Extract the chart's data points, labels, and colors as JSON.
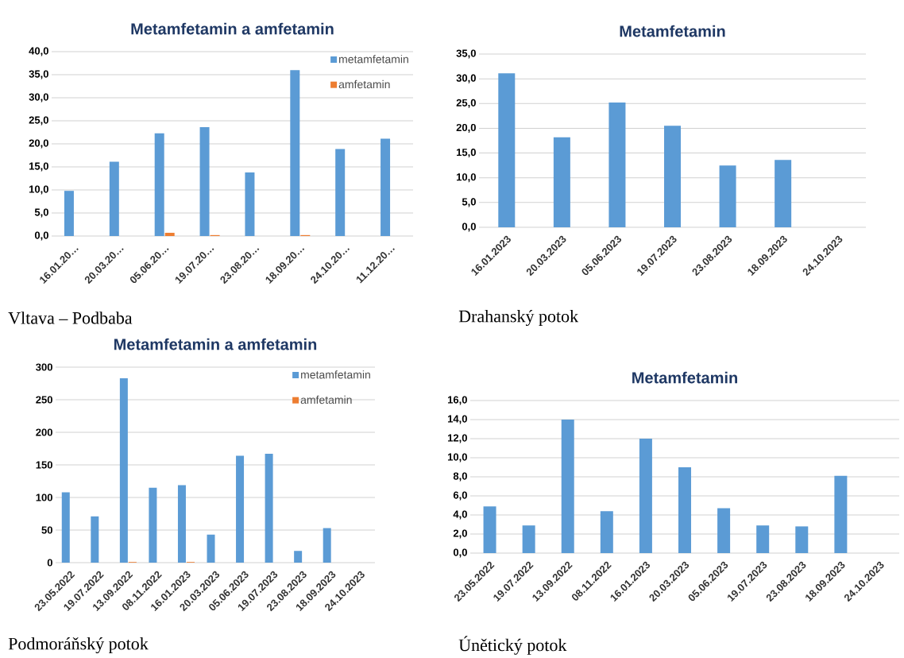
{
  "chart_data": [
    {
      "type": "bar",
      "title": "Metamfetamin a amfetamin",
      "categories": [
        "16.01.20…",
        "20.03.20…",
        "05.06.20…",
        "19.07.20…",
        "23.08.20…",
        "18.09.20…",
        "24.10.20…",
        "11.12.20…"
      ],
      "series": [
        {
          "name": "metamfetamin",
          "color": "#5b9bd5",
          "values": [
            9.8,
            16.1,
            22.3,
            23.6,
            13.8,
            36.0,
            18.9,
            21.1
          ]
        },
        {
          "name": "amfetamin",
          "color": "#ed7d31",
          "values": [
            null,
            null,
            0.7,
            0.2,
            null,
            0.2,
            null,
            null
          ]
        }
      ],
      "ylim": [
        0,
        40
      ],
      "yticks": [
        {
          "value": 0,
          "label": "0,0"
        },
        {
          "value": 5,
          "label": "5,0"
        },
        {
          "value": 10,
          "label": "10,0"
        },
        {
          "value": 15,
          "label": "15,0"
        },
        {
          "value": 20,
          "label": "20,0"
        },
        {
          "value": 25,
          "label": "25,0"
        },
        {
          "value": 30,
          "label": "30,0"
        },
        {
          "value": 35,
          "label": "35,0"
        },
        {
          "value": 40,
          "label": "40,0"
        }
      ],
      "grid": "y",
      "legend": "top right",
      "annotations": [
        "Vltava – Podbaba"
      ]
    },
    {
      "type": "bar",
      "title": "Metamfetamin",
      "categories": [
        "16.01.2023",
        "20.03.2023",
        "05.06.2023",
        "19.07.2023",
        "23.08.2023",
        "18.09.2023",
        "24.10.2023"
      ],
      "series": [
        {
          "color": "#5b9bd5",
          "values": [
            31.1,
            18.2,
            25.2,
            20.5,
            12.5,
            13.6,
            null
          ]
        }
      ],
      "ylim": [
        0,
        35
      ],
      "yticks": [
        {
          "value": 0,
          "label": "0,0"
        },
        {
          "value": 5,
          "label": "5,0"
        },
        {
          "value": 10,
          "label": "10,0"
        },
        {
          "value": 15,
          "label": "15,0"
        },
        {
          "value": 20,
          "label": "20,0"
        },
        {
          "value": 25,
          "label": "25,0"
        },
        {
          "value": 30,
          "label": "30,0"
        },
        {
          "value": 35,
          "label": "35,0"
        }
      ],
      "grid": "y",
      "annotations": [
        "Drahanský potok"
      ]
    },
    {
      "type": "bar",
      "title": "Metamfetamin a amfetamin",
      "categories": [
        "23.05.2022",
        "19.07.2022",
        "13.09.2022",
        "08.11.2022",
        "16.01.2023",
        "20.03.2023",
        "05.06.2023",
        "19.07.2023",
        "23.08.2023",
        "18.09.2023",
        "24.10.2023"
      ],
      "series": [
        {
          "name": "metamfetamin",
          "color": "#5b9bd5",
          "values": [
            108,
            71,
            283,
            115,
            119,
            43,
            164,
            167,
            18,
            53,
            null
          ]
        },
        {
          "name": "amfetamin",
          "color": "#ed7d31",
          "values": [
            null,
            null,
            1,
            null,
            1,
            null,
            null,
            null,
            null,
            null,
            null
          ]
        }
      ],
      "ylim": [
        0,
        300
      ],
      "yticks": [
        0,
        50,
        100,
        150,
        200,
        250,
        300
      ],
      "grid": "y",
      "legend": "top right",
      "annotations": [
        "Podmoráňský potok"
      ]
    },
    {
      "type": "bar",
      "title": "Metamfetamin",
      "categories": [
        "23.05.2022",
        "19.07.2022",
        "13.09.2022",
        "08.11.2022",
        "16.01.2023",
        "20.03.2023",
        "05.06.2023",
        "19.07.2023",
        "23.08.2023",
        "18.09.2023",
        "24.10.2023"
      ],
      "series": [
        {
          "color": "#5b9bd5",
          "values": [
            4.9,
            2.9,
            14.0,
            4.4,
            12.0,
            9.0,
            4.7,
            2.9,
            2.8,
            8.1,
            null
          ]
        }
      ],
      "ylim": [
        0,
        16
      ],
      "yticks": [
        {
          "value": 0,
          "label": "0,0"
        },
        {
          "value": 2,
          "label": "2,0"
        },
        {
          "value": 4,
          "label": "4,0"
        },
        {
          "value": 6,
          "label": "6,0"
        },
        {
          "value": 8,
          "label": "8,0"
        },
        {
          "value": 10,
          "label": "10,0"
        },
        {
          "value": 12,
          "label": "12,0"
        },
        {
          "value": 14,
          "label": "14,0"
        },
        {
          "value": 16,
          "label": "16,0"
        }
      ],
      "grid": "y",
      "annotations": [
        "Únětický potok"
      ]
    }
  ]
}
